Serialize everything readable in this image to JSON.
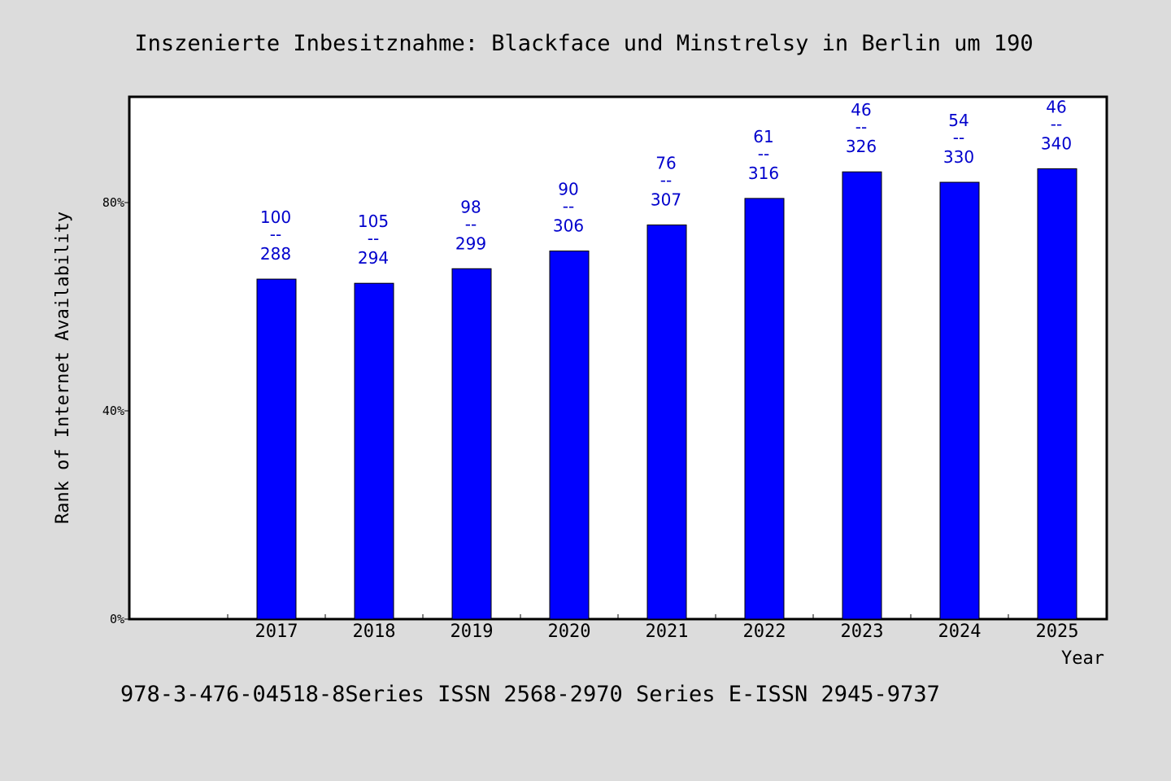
{
  "chart_data": {
    "type": "bar",
    "title": "Inszenierte Inbesitznahme: Blackface und Minstrelsy in Berlin um 190",
    "xlabel": "Year",
    "ylabel": "Rank of Internet Availability",
    "ylim": [
      0,
      100
    ],
    "yticks": [
      {
        "value": 0,
        "label": "0%"
      },
      {
        "value": 40,
        "label": "40%"
      },
      {
        "value": 80,
        "label": "80%"
      }
    ],
    "categories": [
      "2017",
      "2018",
      "2019",
      "2020",
      "2021",
      "2022",
      "2023",
      "2024",
      "2025"
    ],
    "values": [
      65.3,
      64.5,
      67.3,
      70.7,
      75.7,
      80.8,
      85.9,
      83.9,
      86.5
    ],
    "data_labels": [
      {
        "top": "100",
        "sep": "--",
        "bottom": "288"
      },
      {
        "top": "105",
        "sep": "--",
        "bottom": "294"
      },
      {
        "top": "98",
        "sep": "--",
        "bottom": "299"
      },
      {
        "top": "90",
        "sep": "--",
        "bottom": "306"
      },
      {
        "top": "76",
        "sep": "--",
        "bottom": "307"
      },
      {
        "top": "61",
        "sep": "--",
        "bottom": "316"
      },
      {
        "top": "46",
        "sep": "--",
        "bottom": "326"
      },
      {
        "top": "54",
        "sep": "--",
        "bottom": "330"
      },
      {
        "top": "46",
        "sep": "--",
        "bottom": "340"
      }
    ],
    "bar_color": "#0000ff",
    "label_color": "#0000cc",
    "grid": false,
    "legend": "none"
  },
  "footer_text": "978-3-476-04518-8Series ISSN 2568-2970 Series E-ISSN 2945-9737"
}
